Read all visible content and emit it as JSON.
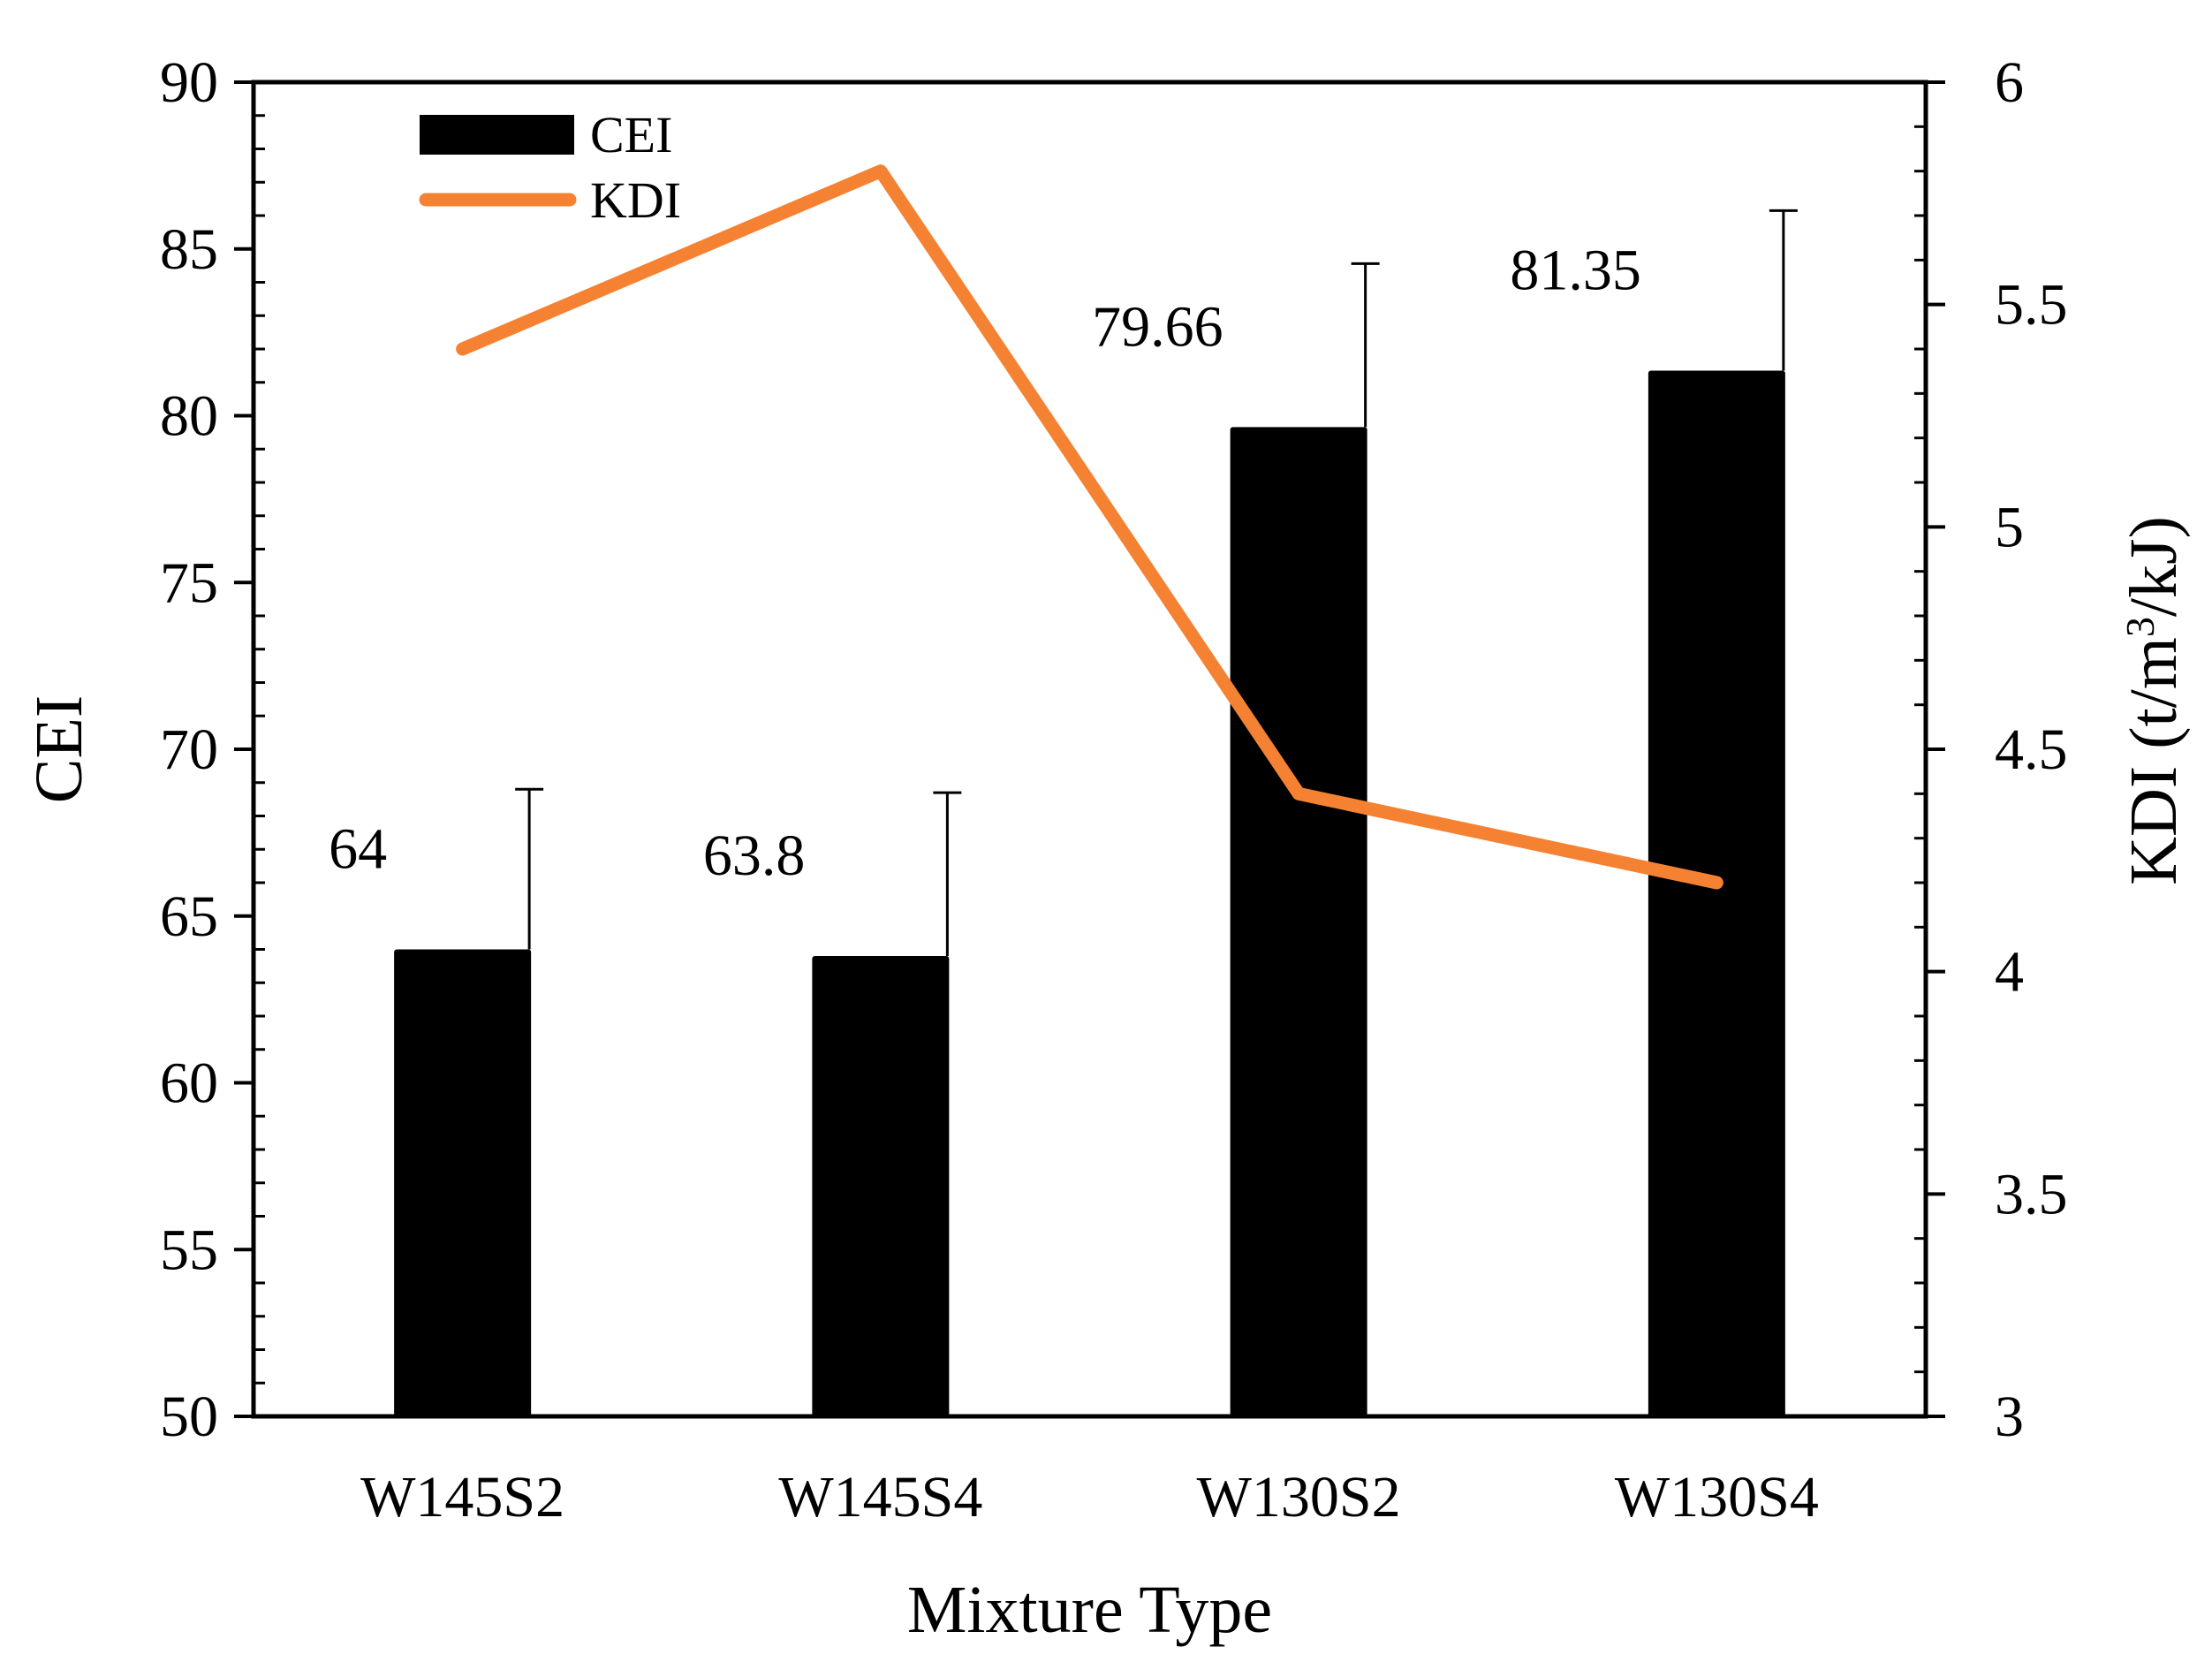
{
  "chart_data": {
    "type": "bar",
    "title": "",
    "xlabel": "Mixture Type",
    "ylabel": "CEI",
    "y2label_prefix": "KDI (t/m",
    "y2label_sup": "3",
    "y2label_suffix": "/kJ)",
    "categories": [
      "W145S2",
      "W145S4",
      "W130S2",
      "W130S4"
    ],
    "ylim": [
      50,
      90
    ],
    "y_ticks": [
      50,
      55,
      60,
      65,
      70,
      75,
      80,
      85,
      90
    ],
    "y2lim": [
      3,
      6
    ],
    "y2_ticks": [
      3,
      3.5,
      4,
      4.5,
      5,
      5.5,
      6
    ],
    "y2_tick_labels": [
      "3",
      "3.5",
      "4",
      "4.5",
      "5",
      "5.5",
      "6"
    ],
    "series": [
      {
        "name": "CEI",
        "type": "bar",
        "axis": "left",
        "color": "#000000",
        "values": [
          64,
          63.8,
          79.66,
          81.35
        ],
        "labels": [
          "64",
          "63.8",
          "79.66",
          "81.35"
        ],
        "error_plus": [
          4.8,
          4.9,
          4.9,
          4.8
        ]
      },
      {
        "name": "KDI",
        "type": "line",
        "axis": "right",
        "color": "#F58232",
        "values": [
          5.4,
          5.8,
          4.4,
          4.2
        ]
      }
    ],
    "legend": {
      "position": "top-left",
      "entries": [
        "CEI",
        "KDI"
      ]
    },
    "grid": false
  }
}
